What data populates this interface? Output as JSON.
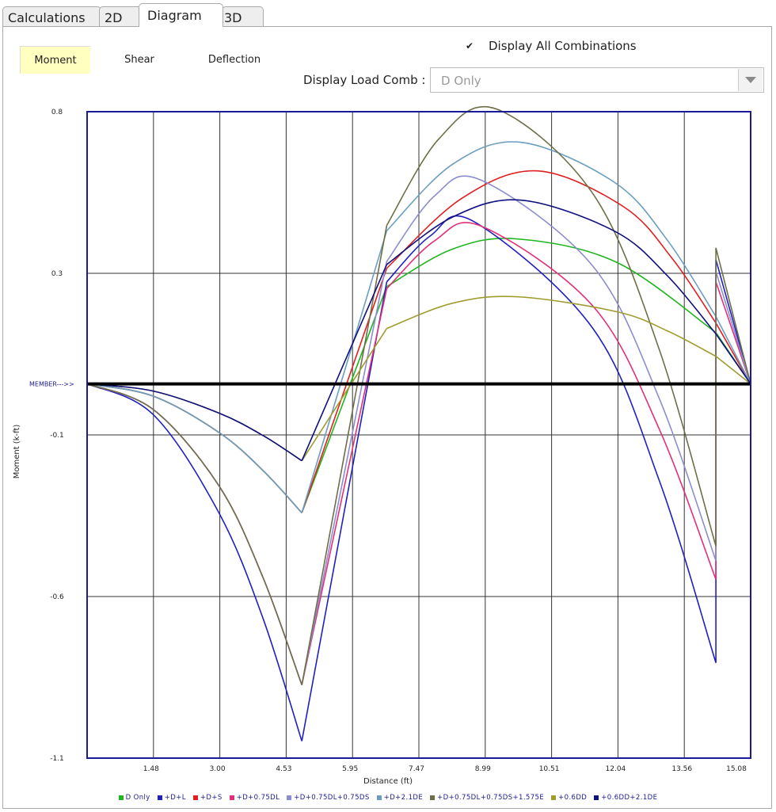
{
  "tabs": [
    {
      "label": "Calculations",
      "active": false
    },
    {
      "label": "2D",
      "active": false
    },
    {
      "label": "Diagram",
      "active": true
    },
    {
      "label": "3D",
      "active": false
    }
  ],
  "modes": [
    {
      "label": "Moment",
      "active": true
    },
    {
      "label": "Shear",
      "active": false
    },
    {
      "label": "Deflection",
      "active": false
    }
  ],
  "display_all": {
    "label": "Display All Combinations",
    "checked": true,
    "mark": "✔"
  },
  "load_comb": {
    "label": "Display Load Comb :",
    "value": "D Only"
  },
  "chart_data": {
    "type": "line",
    "xlabel": "Distance (ft)",
    "ylabel": "Moment (k-ft)",
    "member_label": "MEMBER--->>",
    "xlim": [
      0,
      15.08
    ],
    "ylim": [
      -1.1,
      0.8
    ],
    "x_ticks": [
      "1.48",
      "3.00",
      "4.53",
      "5.95",
      "7.47",
      "8.99",
      "10.51",
      "12.04",
      "13.56",
      "15.08"
    ],
    "y_ticks": [
      "0.8",
      "0.3",
      "-0.1",
      "-0.6",
      "-1.1"
    ],
    "grid": true,
    "legend_position": "bottom",
    "series": [
      {
        "name": "D Only",
        "color": "#1fb51f",
        "points": [
          [
            0,
            0
          ],
          [
            1.5,
            -0.036
          ],
          [
            3,
            -0.143
          ],
          [
            4,
            -0.255
          ],
          [
            4.88,
            -0.379
          ],
          [
            6.81,
            0.286
          ],
          [
            8.3,
            0.396
          ],
          [
            9.78,
            0.426
          ],
          [
            12.04,
            0.357
          ],
          [
            14.29,
            0.151
          ],
          [
            15.08,
            0
          ]
        ]
      },
      {
        "name": "+D+L",
        "color": "#2020c0",
        "points": [
          [
            0,
            0
          ],
          [
            1.5,
            -0.09
          ],
          [
            3,
            -0.38
          ],
          [
            4,
            -0.69
          ],
          [
            4.88,
            -1.05
          ],
          [
            6.81,
            0.3
          ],
          [
            7.8,
            0.435
          ],
          [
            8.79,
            0.477
          ],
          [
            11.5,
            0.162
          ],
          [
            13,
            -0.283
          ],
          [
            14.29,
            -0.82
          ],
          [
            14.29,
            0.365
          ],
          [
            15.08,
            0
          ]
        ]
      },
      {
        "name": "+D+S",
        "color": "#e02020",
        "points": [
          [
            0,
            0
          ],
          [
            1.5,
            -0.036
          ],
          [
            3,
            -0.143
          ],
          [
            4,
            -0.255
          ],
          [
            4.88,
            -0.379
          ],
          [
            6.81,
            0.34
          ],
          [
            8.5,
            0.544
          ],
          [
            10.23,
            0.626
          ],
          [
            12.2,
            0.52
          ],
          [
            13.3,
            0.368
          ],
          [
            14.29,
            0.179
          ],
          [
            15.08,
            0
          ]
        ]
      },
      {
        "name": "+D+0.75DL",
        "color": "#e0307a",
        "points": [
          [
            0,
            0
          ],
          [
            1.5,
            -0.075
          ],
          [
            3,
            -0.3
          ],
          [
            4,
            -0.57
          ],
          [
            4.88,
            -0.885
          ],
          [
            6.81,
            0.28
          ],
          [
            7.9,
            0.421
          ],
          [
            8.97,
            0.463
          ],
          [
            11.5,
            0.228
          ],
          [
            13,
            -0.132
          ],
          [
            14.29,
            -0.575
          ],
          [
            14.29,
            0.3
          ],
          [
            15.08,
            0
          ]
        ]
      },
      {
        "name": "+D+0.75DL+0.75DS",
        "color": "#8c8cd0",
        "points": [
          [
            0,
            0
          ],
          [
            1.5,
            -0.075
          ],
          [
            3,
            -0.3
          ],
          [
            4,
            -0.57
          ],
          [
            4.88,
            -0.885
          ],
          [
            6.81,
            0.36
          ],
          [
            7.9,
            0.553
          ],
          [
            8.97,
            0.598
          ],
          [
            11.5,
            0.345
          ],
          [
            13,
            -0.042
          ],
          [
            14.29,
            -0.52
          ],
          [
            14.29,
            0.33
          ],
          [
            15.08,
            0
          ]
        ]
      },
      {
        "name": "+D+2.1DE",
        "color": "#6a9ec0",
        "points": [
          [
            0,
            0
          ],
          [
            1.5,
            -0.036
          ],
          [
            3,
            -0.143
          ],
          [
            4,
            -0.255
          ],
          [
            4.88,
            -0.379
          ],
          [
            6.81,
            0.45
          ],
          [
            8.3,
            0.645
          ],
          [
            9.87,
            0.71
          ],
          [
            12,
            0.591
          ],
          [
            13.2,
            0.42
          ],
          [
            14.29,
            0.198
          ],
          [
            15.08,
            0
          ]
        ]
      },
      {
        "name": "+D+0.75DL+0.75DS+1.575E",
        "color": "#6e6e48",
        "points": [
          [
            0,
            0
          ],
          [
            1.5,
            -0.075
          ],
          [
            3,
            -0.3
          ],
          [
            4,
            -0.57
          ],
          [
            4.88,
            -0.885
          ],
          [
            6.81,
            0.466
          ],
          [
            8,
            0.721
          ],
          [
            9.3,
            0.808
          ],
          [
            11.5,
            0.558
          ],
          [
            13,
            0.102
          ],
          [
            14.29,
            -0.477
          ],
          [
            14.29,
            0.4
          ],
          [
            15.08,
            0
          ]
        ]
      },
      {
        "name": "+0.6DD",
        "color": "#a09c30",
        "points": [
          [
            0,
            0
          ],
          [
            1.5,
            -0.021
          ],
          [
            3,
            -0.086
          ],
          [
            4,
            -0.152
          ],
          [
            4.88,
            -0.226
          ],
          [
            6.81,
            0.163
          ],
          [
            8.3,
            0.237
          ],
          [
            9.78,
            0.256
          ],
          [
            12.04,
            0.212
          ],
          [
            13.2,
            0.155
          ],
          [
            14.29,
            0.081
          ],
          [
            15.08,
            0
          ]
        ]
      },
      {
        "name": "+0.6DD+2.1DE",
        "color": "#101080",
        "points": [
          [
            0,
            0
          ],
          [
            1.5,
            -0.021
          ],
          [
            3,
            -0.086
          ],
          [
            4,
            -0.152
          ],
          [
            4.88,
            -0.226
          ],
          [
            6.81,
            0.351
          ],
          [
            8.3,
            0.49
          ],
          [
            9.87,
            0.54
          ],
          [
            12,
            0.448
          ],
          [
            13.2,
            0.316
          ],
          [
            14.29,
            0.147
          ],
          [
            15.08,
            0
          ]
        ]
      }
    ]
  }
}
